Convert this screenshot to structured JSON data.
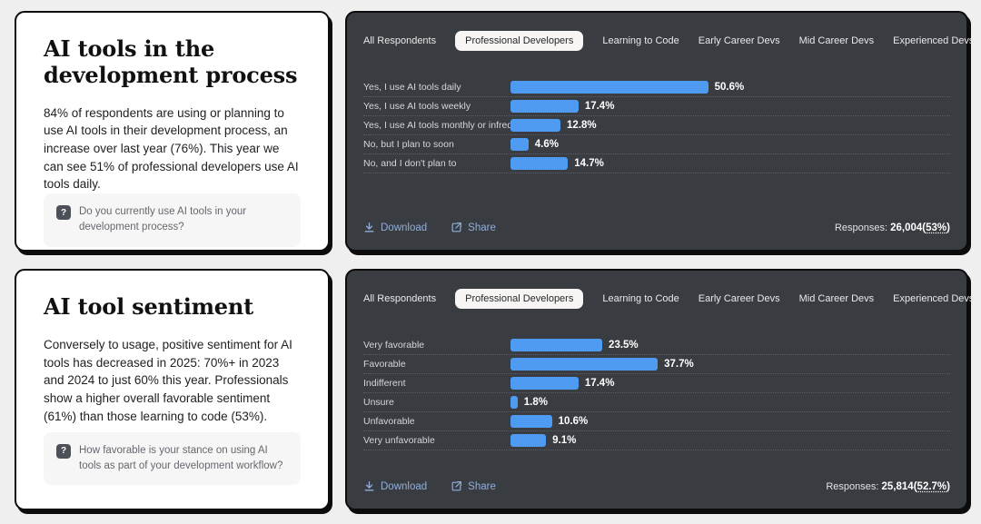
{
  "colors": {
    "page_bg": "#efeff0",
    "card_bg": "#ffffff",
    "panel_bg": "#393c41",
    "bar_blue": "#4f9bf2",
    "link_blue": "#92aed8",
    "border_black": "#0c0c0c"
  },
  "icons": {
    "question": "?",
    "download": "download-icon",
    "share": "share-icon"
  },
  "cards": [
    {
      "title": "AI tools in the development process",
      "body": "84% of respondents are using or planning to use AI tools in their development process, an increase over last year (76%). This year we can see 51% of professional developers use AI tools daily.",
      "question": "Do you currently use AI tools in your development process?"
    },
    {
      "title": "AI tool sentiment",
      "body": "Conversely to usage, positive sentiment for AI tools has decreased in 2025: 70%+ in 2023 and 2024 to just 60% this year. Professionals show a higher overall favorable sentiment (61%) than those learning to code (53%).",
      "question": "How favorable is your stance on using AI tools as part of your development workflow?"
    }
  ],
  "tabs": {
    "items": [
      "All Respondents",
      "Professional Developers",
      "Learning to Code",
      "Early Career Devs",
      "Mid Career Devs",
      "Experienced Devs"
    ],
    "active": "Professional Developers"
  },
  "actions": {
    "download": "Download",
    "share": "Share"
  },
  "chart_data": [
    {
      "type": "bar",
      "orientation": "horizontal",
      "categories": [
        "Yes, I use AI tools daily",
        "Yes, I use AI tools weekly",
        "Yes, I use AI tools monthly or infrequently",
        "No, but I plan to soon",
        "No, and I don't plan to"
      ],
      "values": [
        50.6,
        17.4,
        12.8,
        4.6,
        14.7
      ],
      "labels": [
        "50.6%",
        "17.4%",
        "12.8%",
        "4.6%",
        "14.7%"
      ],
      "xlim": [
        0,
        100
      ],
      "grid": "dotted row separators",
      "legend": "none",
      "bar_color": "#4f9bf2",
      "responses": {
        "label": "Responses:",
        "value": "26,004",
        "open": "(",
        "percent": "53%",
        "close": ")"
      }
    },
    {
      "type": "bar",
      "orientation": "horizontal",
      "categories": [
        "Very favorable",
        "Favorable",
        "Indifferent",
        "Unsure",
        "Unfavorable",
        "Very unfavorable"
      ],
      "values": [
        23.5,
        37.7,
        17.4,
        1.8,
        10.6,
        9.1
      ],
      "labels": [
        "23.5%",
        "37.7%",
        "17.4%",
        "1.8%",
        "10.6%",
        "9.1%"
      ],
      "xlim": [
        0,
        100
      ],
      "grid": "dotted row separators",
      "legend": "none",
      "bar_color": "#4f9bf2",
      "responses": {
        "label": "Responses:",
        "value": "25,814",
        "open": "(",
        "percent": "52.7%",
        "close": ")"
      }
    }
  ]
}
